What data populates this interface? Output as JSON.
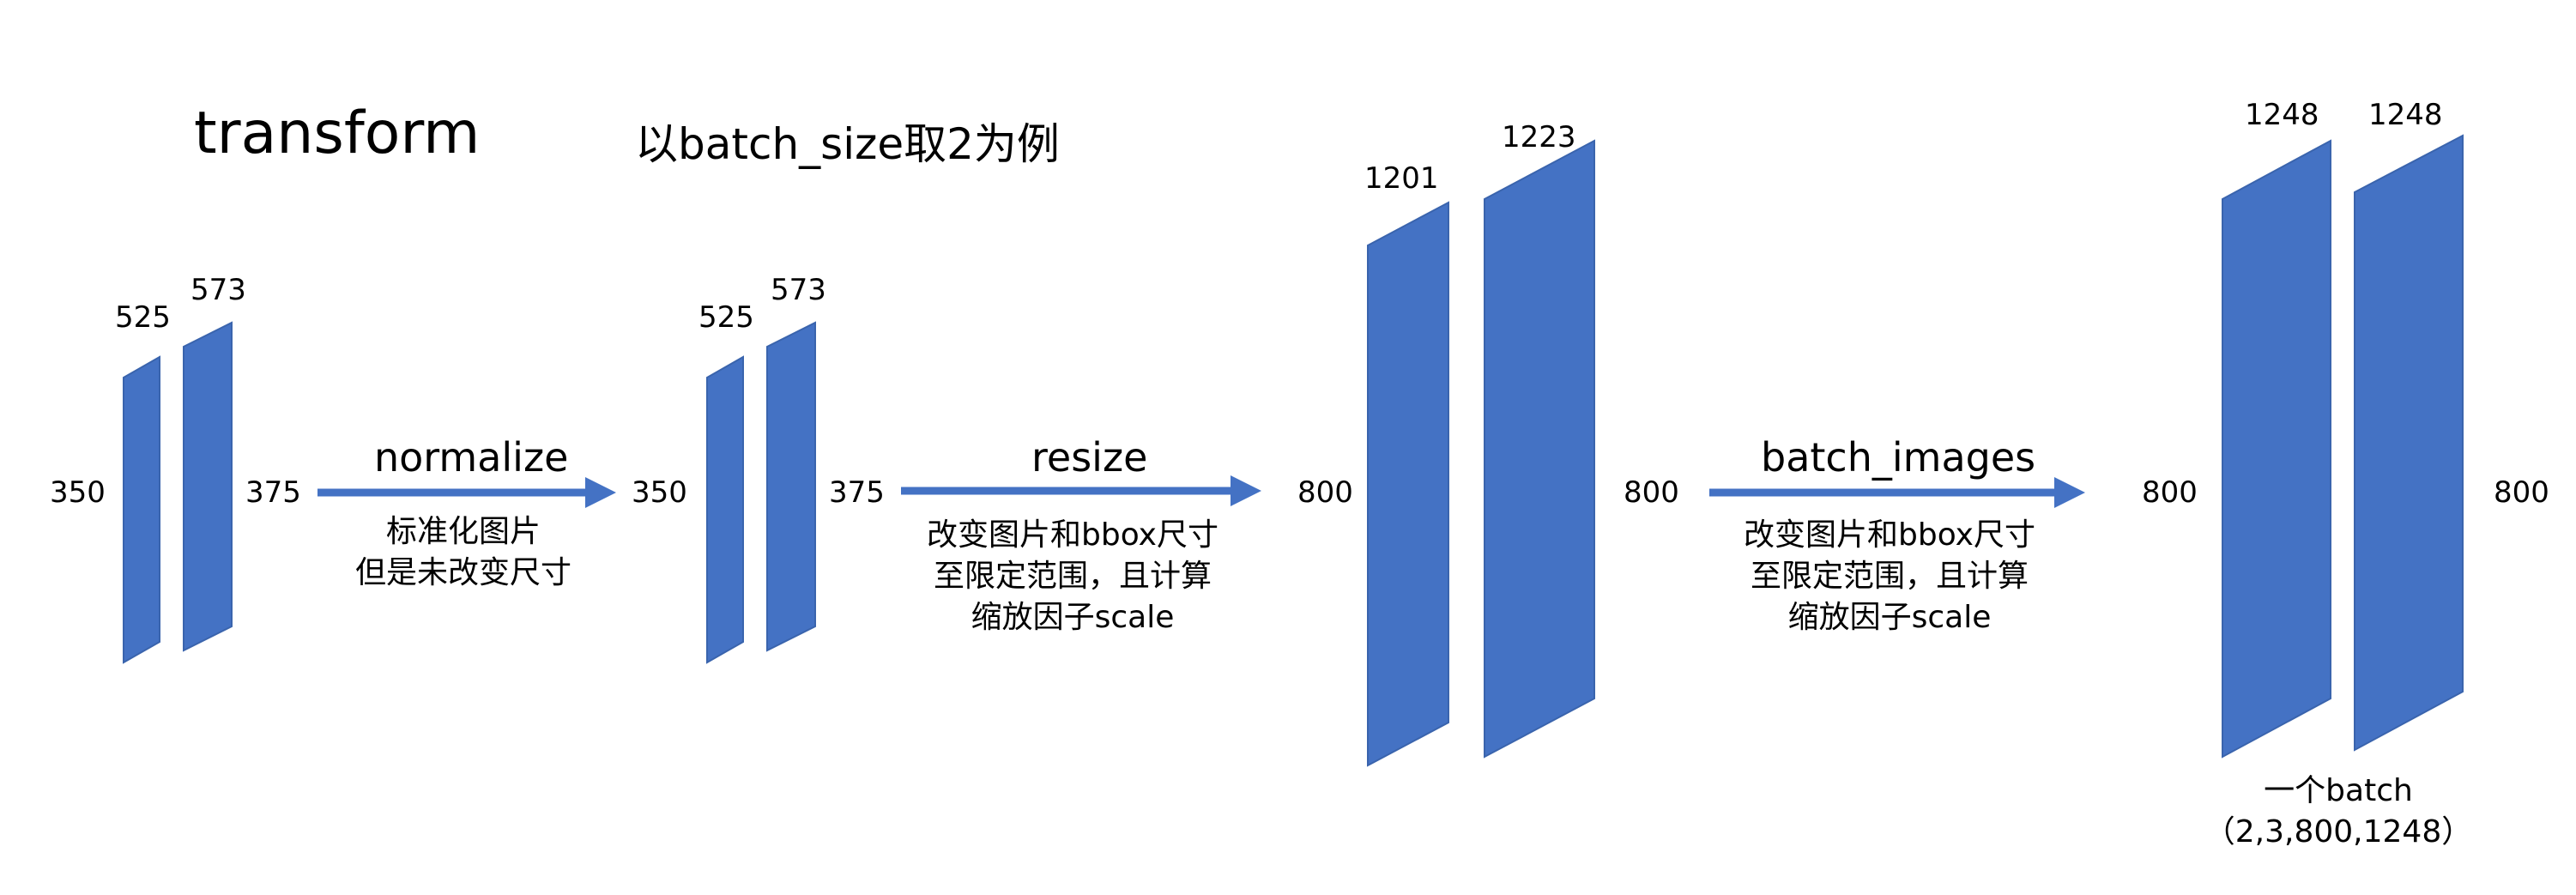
{
  "title": "transform",
  "subtitle": "以batch_size取2为例",
  "colors": {
    "panel": "#4472c4",
    "arrow": "#4472c4"
  },
  "stage1": {
    "w1": "525",
    "w2": "573",
    "h_left": "350",
    "h_right": "375"
  },
  "step1": {
    "label": "normalize",
    "note": [
      "标准化图片",
      "但是未改变尺寸"
    ]
  },
  "stage2": {
    "w1": "525",
    "w2": "573",
    "h_left": "350",
    "h_right": "375"
  },
  "step2": {
    "label": "resize",
    "note": [
      "改变图片和bbox尺寸",
      "至限定范围，且计算",
      "缩放因子scale"
    ]
  },
  "stage3": {
    "w1": "1201",
    "w2": "1223",
    "h_left": "800",
    "h_right": "800"
  },
  "step3": {
    "label": "batch_images",
    "note": [
      "改变图片和bbox尺寸",
      "至限定范围，且计算",
      "缩放因子scale"
    ]
  },
  "stage4": {
    "w1": "1248",
    "w2": "1248",
    "h_left": "800",
    "h_right": "800",
    "caption": [
      "一个batch",
      "（2,3,800,1248）"
    ]
  }
}
